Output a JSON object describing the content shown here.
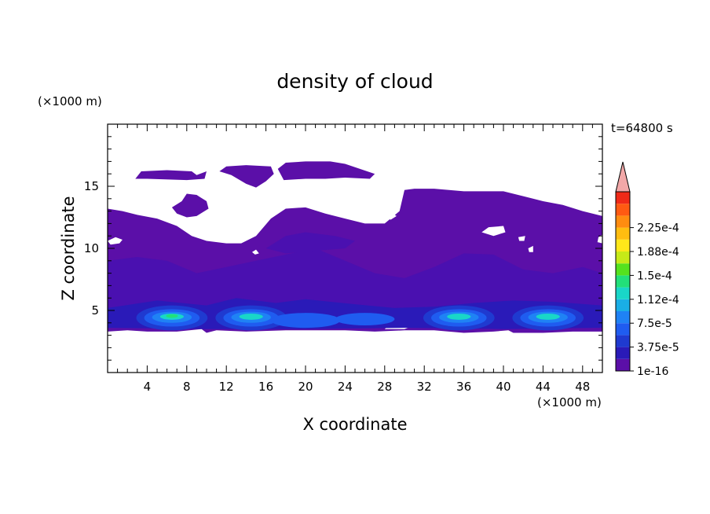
{
  "chart_data": {
    "type": "heatmap",
    "title": "density of cloud",
    "xlabel": "X coordinate",
    "ylabel": "Z coordinate",
    "x_unit": "(×1000 m)",
    "y_unit": "(×1000 m)",
    "time_label": "t=64800 s",
    "xlim": [
      0,
      50
    ],
    "ylim": [
      0,
      20
    ],
    "x_ticks": [
      4,
      8,
      12,
      16,
      20,
      24,
      28,
      32,
      36,
      40,
      44,
      48
    ],
    "y_ticks": [
      5,
      10,
      15
    ],
    "colorbar": {
      "labels": [
        "1e-16",
        "3.75e-5",
        "7.5e-5",
        "1.12e-4",
        "1.5e-4",
        "1.88e-4",
        "2.25e-4"
      ],
      "colors": [
        "#5b0fa8",
        "#2a1ab8",
        "#1f3ad0",
        "#1f5cf0",
        "#1f82f5",
        "#1aaee6",
        "#19d6c8",
        "#22e07a",
        "#55e21e",
        "#c6ea18",
        "#ffe81a",
        "#ffbd10",
        "#ff8c10",
        "#ff5a12",
        "#f02a18"
      ],
      "overflow_color": "#f2a8a8"
    },
    "note": "Cloud layer spans roughly z = 3–17 km; density peaks near z ≈ 4.5 km at x ≈ 6, 14, 36 and 44 km."
  }
}
